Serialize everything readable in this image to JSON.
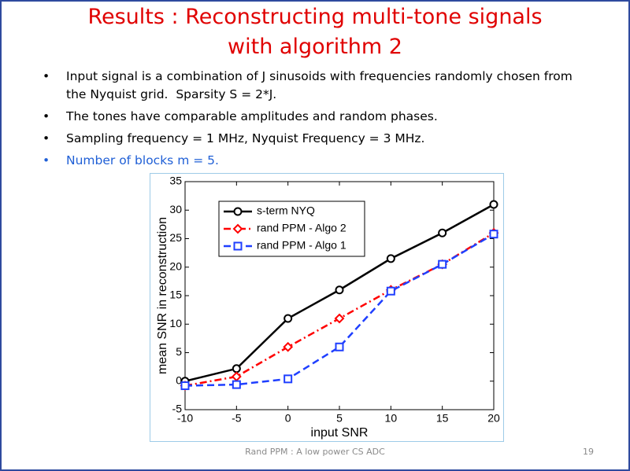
{
  "slide": {
    "title_lines": [
      "Results : Reconstructing multi-tone signals",
      "with algorithm 2"
    ],
    "bullets": [
      {
        "text": "Input signal is a combination of J sinusoids with frequencies randomly chosen from the Nyquist grid.  Sparsity S = 2*J."
      },
      {
        "text": "The tones have comparable amplitudes and random phases."
      },
      {
        "text": "Sampling frequency = 1 MHz, Nyquist Frequency = 3 MHz."
      },
      {
        "text": "Number of blocks m = 5.",
        "color": "#1f5fd6"
      }
    ],
    "footer": "Rand PPM : A low power CS ADC",
    "page_number": "19"
  },
  "chart_data": {
    "type": "line",
    "x_label": "input SNR",
    "y_label": "mean SNR in reconstruction",
    "x": [
      -10,
      -5,
      0,
      5,
      10,
      15,
      20
    ],
    "series": [
      {
        "name": "s-term NYQ",
        "color": "#000000",
        "dash": "solid",
        "marker": "circle",
        "values": [
          0,
          2.2,
          11,
          16,
          21.5,
          26,
          31
        ]
      },
      {
        "name": "rand PPM - Algo 2",
        "color": "#ff0000",
        "dash": "dashdot",
        "marker": "diamond",
        "values": [
          -0.8,
          0.8,
          6,
          11,
          16,
          20.5,
          26
        ]
      },
      {
        "name": "rand PPM - Algo 1",
        "color": "#1f3fff",
        "dash": "dashed",
        "marker": "square",
        "values": [
          -0.8,
          -0.6,
          0.4,
          6,
          15.8,
          20.5,
          25.8
        ]
      }
    ],
    "xlim": [
      -10,
      20
    ],
    "xticks": [
      -10,
      -5,
      0,
      5,
      10,
      15,
      20
    ],
    "ylim": [
      -5,
      35
    ],
    "yticks": [
      -5,
      0,
      5,
      10,
      15,
      20,
      25,
      30,
      35
    ],
    "legend": "upper-left"
  }
}
